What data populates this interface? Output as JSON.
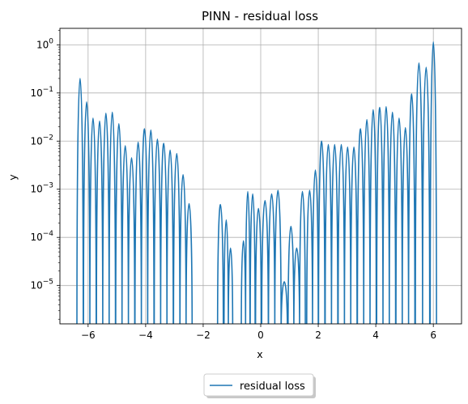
{
  "chart_data": {
    "type": "line",
    "title": "PINN - residual loss",
    "xlabel": "x",
    "ylabel": "y",
    "xlim": [
      -6.98,
      6.98
    ],
    "xticks": [
      -6,
      -4,
      -2,
      0,
      2,
      4,
      6
    ],
    "xtick_labels": [
      "−6",
      "−4",
      "−2",
      "0",
      "2",
      "4",
      "6"
    ],
    "yscale": "log",
    "ylim": [
      1.6e-06,
      2.2
    ],
    "yticks": [
      1e-05,
      0.0001,
      0.001,
      0.01,
      0.1,
      1
    ],
    "ytick_labels": [
      {
        "base": "10",
        "exp": "−5"
      },
      {
        "base": "10",
        "exp": "−4"
      },
      {
        "base": "10",
        "exp": "−3"
      },
      {
        "base": "10",
        "exp": "−2"
      },
      {
        "base": "10",
        "exp": "−1"
      },
      {
        "base": "10",
        "exp": "0"
      }
    ],
    "grid": true,
    "legend": {
      "location": "below-center",
      "entries": [
        "residual loss"
      ]
    },
    "series": [
      {
        "name": "residual loss",
        "color": "#1f77b4",
        "peaks": [
          {
            "x": -6.28,
            "y": 0.2
          },
          {
            "x": -6.05,
            "y": 0.065
          },
          {
            "x": -5.83,
            "y": 0.03
          },
          {
            "x": -5.6,
            "y": 0.026
          },
          {
            "x": -5.38,
            "y": 0.038
          },
          {
            "x": -5.16,
            "y": 0.04
          },
          {
            "x": -4.93,
            "y": 0.023
          },
          {
            "x": -4.71,
            "y": 0.008
          },
          {
            "x": -4.49,
            "y": 0.0045
          },
          {
            "x": -4.26,
            "y": 0.0095
          },
          {
            "x": -4.04,
            "y": 0.018
          },
          {
            "x": -3.82,
            "y": 0.017
          },
          {
            "x": -3.59,
            "y": 0.011
          },
          {
            "x": -3.37,
            "y": 0.009
          },
          {
            "x": -3.15,
            "y": 0.0065
          },
          {
            "x": -2.92,
            "y": 0.0055
          },
          {
            "x": -2.7,
            "y": 0.002
          },
          {
            "x": -2.49,
            "y": 0.0005
          },
          {
            "x": -1.4,
            "y": 0.00048
          },
          {
            "x": -1.2,
            "y": 0.00023
          },
          {
            "x": -1.05,
            "y": 6e-05
          },
          {
            "x": -0.6,
            "y": 8.5e-05
          },
          {
            "x": -0.45,
            "y": 0.0009
          },
          {
            "x": -0.28,
            "y": 0.0008
          },
          {
            "x": -0.08,
            "y": 0.0004
          },
          {
            "x": 0.15,
            "y": 0.00058
          },
          {
            "x": 0.38,
            "y": 0.0008
          },
          {
            "x": 0.6,
            "y": 0.00095
          },
          {
            "x": 0.82,
            "y": 1.2e-05
          },
          {
            "x": 1.05,
            "y": 0.00017
          },
          {
            "x": 1.25,
            "y": 6e-05
          },
          {
            "x": 1.45,
            "y": 0.0009
          },
          {
            "x": 1.7,
            "y": 0.00095
          },
          {
            "x": 1.9,
            "y": 0.0025
          },
          {
            "x": 2.12,
            "y": 0.01
          },
          {
            "x": 2.35,
            "y": 0.0085
          },
          {
            "x": 2.57,
            "y": 0.0085
          },
          {
            "x": 2.8,
            "y": 0.0085
          },
          {
            "x": 3.02,
            "y": 0.0075
          },
          {
            "x": 3.24,
            "y": 0.0075
          },
          {
            "x": 3.47,
            "y": 0.018
          },
          {
            "x": 3.69,
            "y": 0.028
          },
          {
            "x": 3.91,
            "y": 0.045
          },
          {
            "x": 4.14,
            "y": 0.05
          },
          {
            "x": 4.36,
            "y": 0.052
          },
          {
            "x": 4.58,
            "y": 0.04
          },
          {
            "x": 4.81,
            "y": 0.03
          },
          {
            "x": 5.03,
            "y": 0.019
          },
          {
            "x": 5.25,
            "y": 0.095
          },
          {
            "x": 5.5,
            "y": 0.42
          },
          {
            "x": 5.75,
            "y": 0.34
          },
          {
            "x": 6.0,
            "y": 1.15
          }
        ]
      }
    ]
  }
}
